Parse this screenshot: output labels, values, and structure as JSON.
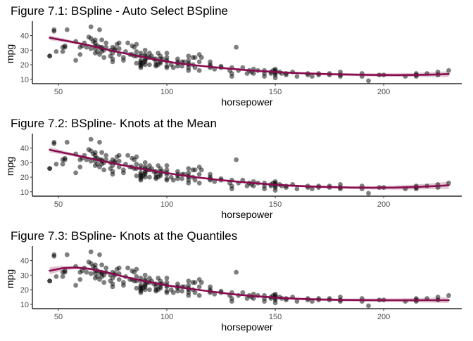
{
  "chart_data": [
    {
      "type": "scatter",
      "title": "Figure 7.1: BSpline - Auto Select BSpline",
      "xlabel": "horsepower",
      "ylabel": "mpg",
      "xlim": [
        38,
        236
      ],
      "ylim": [
        7,
        48
      ],
      "x_ticks": [
        50,
        100,
        150,
        200
      ],
      "y_ticks": [
        10,
        20,
        30,
        40
      ],
      "grid": false,
      "point_color": "#000000",
      "fit_color": "#8b0a50",
      "band_color": "#c9a3b3",
      "fit": [
        [
          46,
          38.5
        ],
        [
          55,
          36.0
        ],
        [
          65,
          33.0
        ],
        [
          75,
          29.5
        ],
        [
          85,
          26.5
        ],
        [
          95,
          23.5
        ],
        [
          105,
          21.0
        ],
        [
          115,
          19.3
        ],
        [
          125,
          17.8
        ],
        [
          135,
          16.5
        ],
        [
          145,
          15.5
        ],
        [
          155,
          14.6
        ],
        [
          165,
          14.0
        ],
        [
          175,
          13.5
        ],
        [
          185,
          13.2
        ],
        [
          195,
          13.0
        ],
        [
          205,
          12.9
        ],
        [
          215,
          13.0
        ],
        [
          225,
          13.3
        ],
        [
          230,
          13.6
        ]
      ],
      "band_halfwidth": [
        1.6,
        1.0,
        0.8,
        0.6,
        0.5,
        0.5,
        0.5,
        0.5,
        0.5,
        0.6,
        0.6,
        0.7,
        0.8,
        0.9,
        1.0,
        1.1,
        1.2,
        1.4,
        1.7,
        2.0
      ]
    },
    {
      "type": "scatter",
      "title": "Figure 7.2: BSpline- Knots at the Mean",
      "xlabel": "horsepower",
      "ylabel": "mpg",
      "xlim": [
        38,
        236
      ],
      "ylim": [
        7,
        48
      ],
      "x_ticks": [
        50,
        100,
        150,
        200
      ],
      "y_ticks": [
        10,
        20,
        30,
        40
      ],
      "grid": false,
      "point_color": "#000000",
      "fit_color": "#8b0a50",
      "band_color": "#c9a3b3",
      "fit": [
        [
          46,
          38.8
        ],
        [
          55,
          36.0
        ],
        [
          65,
          32.8
        ],
        [
          75,
          29.6
        ],
        [
          85,
          26.7
        ],
        [
          95,
          24.0
        ],
        [
          105,
          21.7
        ],
        [
          115,
          19.7
        ],
        [
          125,
          18.0
        ],
        [
          135,
          16.6
        ],
        [
          145,
          15.4
        ],
        [
          155,
          14.4
        ],
        [
          165,
          13.7
        ],
        [
          175,
          13.2
        ],
        [
          185,
          12.9
        ],
        [
          195,
          12.8
        ],
        [
          205,
          12.9
        ],
        [
          215,
          13.3
        ],
        [
          225,
          14.0
        ],
        [
          230,
          14.5
        ]
      ],
      "band_halfwidth": [
        1.8,
        1.1,
        0.8,
        0.6,
        0.5,
        0.5,
        0.5,
        0.5,
        0.6,
        0.6,
        0.7,
        0.7,
        0.8,
        0.9,
        1.0,
        1.2,
        1.4,
        1.7,
        2.1,
        2.5
      ]
    },
    {
      "type": "scatter",
      "title": "Figure 7.3: BSpline- Knots at the Quantiles",
      "xlabel": "horsepower",
      "ylabel": "mpg",
      "xlim": [
        38,
        236
      ],
      "ylim": [
        7,
        48
      ],
      "x_ticks": [
        50,
        100,
        150,
        200
      ],
      "y_ticks": [
        10,
        20,
        30,
        40
      ],
      "grid": false,
      "point_color": "#000000",
      "fit_color": "#8b0a50",
      "band_color": "#c9a3b3",
      "fit": [
        [
          46,
          33.0
        ],
        [
          52,
          34.8
        ],
        [
          58,
          35.2
        ],
        [
          65,
          34.2
        ],
        [
          72,
          32.0
        ],
        [
          80,
          29.0
        ],
        [
          90,
          25.8
        ],
        [
          100,
          23.0
        ],
        [
          110,
          20.8
        ],
        [
          120,
          18.8
        ],
        [
          130,
          17.0
        ],
        [
          140,
          15.6
        ],
        [
          150,
          14.6
        ],
        [
          160,
          13.8
        ],
        [
          170,
          13.3
        ],
        [
          180,
          13.0
        ],
        [
          190,
          12.9
        ],
        [
          200,
          12.8
        ],
        [
          210,
          12.8
        ],
        [
          220,
          12.8
        ],
        [
          230,
          12.8
        ]
      ],
      "band_halfwidth": [
        2.5,
        1.6,
        1.1,
        0.9,
        0.8,
        0.7,
        0.6,
        0.6,
        0.6,
        0.6,
        0.6,
        0.7,
        0.7,
        0.8,
        0.9,
        1.0,
        1.1,
        1.2,
        1.4,
        1.6,
        2.0
      ]
    }
  ],
  "observations": [
    [
      46,
      26
    ],
    [
      46,
      26
    ],
    [
      48,
      43
    ],
    [
      48,
      44
    ],
    [
      49,
      29
    ],
    [
      52,
      29
    ],
    [
      52,
      32
    ],
    [
      53,
      33
    ],
    [
      53,
      32
    ],
    [
      54,
      44
    ],
    [
      58,
      36
    ],
    [
      58,
      23
    ],
    [
      60,
      27
    ],
    [
      60,
      32
    ],
    [
      61,
      33
    ],
    [
      62,
      35
    ],
    [
      63,
      32
    ],
    [
      64,
      39
    ],
    [
      65,
      38
    ],
    [
      65,
      46
    ],
    [
      65,
      31
    ],
    [
      66,
      36
    ],
    [
      67,
      37
    ],
    [
      67,
      31
    ],
    [
      67,
      28
    ],
    [
      67,
      35
    ],
    [
      67,
      33
    ],
    [
      68,
      29
    ],
    [
      68,
      33
    ],
    [
      69,
      44
    ],
    [
      69,
      32
    ],
    [
      69,
      27
    ],
    [
      70,
      29
    ],
    [
      70,
      32
    ],
    [
      70,
      37
    ],
    [
      70,
      31
    ],
    [
      71,
      30
    ],
    [
      71,
      25
    ],
    [
      72,
      32
    ],
    [
      72,
      35
    ],
    [
      74,
      30
    ],
    [
      74,
      26
    ],
    [
      75,
      32
    ],
    [
      75,
      28
    ],
    [
      75,
      22
    ],
    [
      75,
      24
    ],
    [
      76,
      31
    ],
    [
      76,
      30
    ],
    [
      77,
      34
    ],
    [
      78,
      31
    ],
    [
      78,
      27
    ],
    [
      78,
      35
    ],
    [
      80,
      25
    ],
    [
      80,
      23
    ],
    [
      81,
      29
    ],
    [
      82,
      35
    ],
    [
      83,
      27
    ],
    [
      84,
      33
    ],
    [
      84,
      27
    ],
    [
      85,
      32
    ],
    [
      85,
      26
    ],
    [
      86,
      34
    ],
    [
      86,
      26
    ],
    [
      86,
      29
    ],
    [
      86,
      21
    ],
    [
      88,
      26
    ],
    [
      88,
      22
    ],
    [
      88,
      21
    ],
    [
      88,
      20
    ],
    [
      88,
      23
    ],
    [
      88,
      19
    ],
    [
      88,
      28
    ],
    [
      88,
      18
    ],
    [
      89,
      21
    ],
    [
      90,
      30
    ],
    [
      90,
      27
    ],
    [
      90,
      26
    ],
    [
      90,
      22
    ],
    [
      90,
      23
    ],
    [
      90,
      24
    ],
    [
      90,
      20
    ],
    [
      91,
      25
    ],
    [
      92,
      28
    ],
    [
      92,
      25
    ],
    [
      92,
      20
    ],
    [
      93,
      26
    ],
    [
      94,
      24
    ],
    [
      95,
      22
    ],
    [
      95,
      24
    ],
    [
      95,
      20
    ],
    [
      95,
      19
    ],
    [
      96,
      20
    ],
    [
      96,
      28
    ],
    [
      97,
      22
    ],
    [
      97,
      21
    ],
    [
      97,
      26
    ],
    [
      97,
      24
    ],
    [
      98,
      24
    ],
    [
      100,
      22
    ],
    [
      100,
      25
    ],
    [
      100,
      19
    ],
    [
      100,
      18
    ],
    [
      100,
      23
    ],
    [
      100,
      28
    ],
    [
      102,
      20
    ],
    [
      103,
      18
    ],
    [
      105,
      21
    ],
    [
      105,
      24
    ],
    [
      105,
      22
    ],
    [
      105,
      19
    ],
    [
      107,
      22
    ],
    [
      107,
      19
    ],
    [
      108,
      22
    ],
    [
      110,
      18
    ],
    [
      110,
      20
    ],
    [
      110,
      23
    ],
    [
      110,
      21
    ],
    [
      110,
      26
    ],
    [
      110,
      16
    ],
    [
      112,
      20
    ],
    [
      112,
      25
    ],
    [
      113,
      25
    ],
    [
      113,
      18
    ],
    [
      115,
      22
    ],
    [
      115,
      27
    ],
    [
      115,
      16
    ],
    [
      116,
      25
    ],
    [
      120,
      20
    ],
    [
      120,
      19
    ],
    [
      120,
      18
    ],
    [
      120,
      22
    ],
    [
      122,
      17
    ],
    [
      125,
      19
    ],
    [
      125,
      18
    ],
    [
      129,
      16
    ],
    [
      130,
      18
    ],
    [
      130,
      14
    ],
    [
      130,
      12
    ],
    [
      132,
      32
    ],
    [
      133,
      16
    ],
    [
      135,
      18
    ],
    [
      137,
      14
    ],
    [
      138,
      16
    ],
    [
      139,
      15
    ],
    [
      140,
      14
    ],
    [
      140,
      17
    ],
    [
      142,
      16
    ],
    [
      145,
      14
    ],
    [
      145,
      16
    ],
    [
      145,
      12
    ],
    [
      148,
      15
    ],
    [
      148,
      14
    ],
    [
      149,
      16
    ],
    [
      150,
      15
    ],
    [
      150,
      14
    ],
    [
      150,
      13
    ],
    [
      150,
      16
    ],
    [
      150,
      11
    ],
    [
      150,
      17
    ],
    [
      152,
      15
    ],
    [
      153,
      14
    ],
    [
      155,
      13
    ],
    [
      155,
      14
    ],
    [
      158,
      15
    ],
    [
      160,
      12
    ],
    [
      165,
      13
    ],
    [
      165,
      14
    ],
    [
      167,
      12
    ],
    [
      170,
      13
    ],
    [
      170,
      14
    ],
    [
      175,
      13
    ],
    [
      175,
      14
    ],
    [
      180,
      12
    ],
    [
      180,
      13
    ],
    [
      180,
      15
    ],
    [
      190,
      12
    ],
    [
      190,
      14
    ],
    [
      193,
      9
    ],
    [
      198,
      13
    ],
    [
      200,
      13
    ],
    [
      210,
      12
    ],
    [
      215,
      12
    ],
    [
      215,
      14
    ],
    [
      215,
      13
    ],
    [
      220,
      14
    ],
    [
      225,
      13
    ],
    [
      225,
      15
    ],
    [
      230,
      16
    ]
  ]
}
